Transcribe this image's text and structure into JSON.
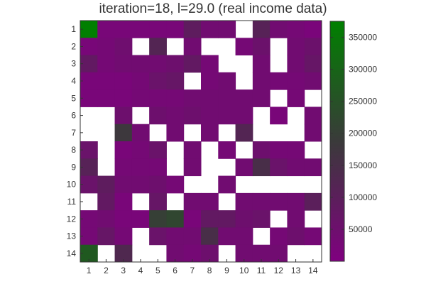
{
  "chart_data": {
    "type": "heatmap",
    "title": "iteration=18, l=29.0 (real income data)",
    "x": [
      1,
      2,
      3,
      4,
      5,
      6,
      7,
      8,
      9,
      10,
      11,
      12,
      13,
      14
    ],
    "y": [
      1,
      2,
      3,
      4,
      5,
      6,
      7,
      8,
      9,
      10,
      11,
      12,
      13,
      14
    ],
    "x_tick_labels": [
      "1",
      "2",
      "3",
      "4",
      "5",
      "6",
      "7",
      "8",
      "9",
      "10",
      "11",
      "12",
      "13",
      "14"
    ],
    "y_tick_labels": [
      "1",
      "2",
      "3",
      "4",
      "5",
      "6",
      "7",
      "8",
      "9",
      "10",
      "11",
      "12",
      "13",
      "14"
    ],
    "colorbar": {
      "range": [
        0,
        375000
      ],
      "ticks": [
        50000,
        100000,
        150000,
        200000,
        250000,
        300000,
        350000
      ],
      "tick_labels": [
        "50000",
        "100000",
        "150000",
        "200000",
        "250000",
        "300000",
        "350000"
      ]
    },
    "colormap": {
      "low": "#800080",
      "mid": "#3a3a3a",
      "high": "#008000"
    },
    "values": [
      [
        372000,
        22000,
        22000,
        22000,
        22000,
        22000,
        90000,
        40000,
        40000,
        null,
        110000,
        40000,
        30000,
        15000
      ],
      [
        22000,
        30000,
        45000,
        null,
        120000,
        null,
        40000,
        null,
        null,
        30000,
        55000,
        null,
        40000,
        55000
      ],
      [
        80000,
        30000,
        40000,
        40000,
        40000,
        50000,
        80000,
        30000,
        null,
        null,
        40000,
        null,
        40000,
        70000
      ],
      [
        20000,
        20000,
        20000,
        30000,
        60000,
        70000,
        null,
        30000,
        40000,
        null,
        40000,
        30000,
        30000,
        40000
      ],
      [
        20000,
        20000,
        20000,
        30000,
        30000,
        30000,
        40000,
        40000,
        40000,
        40000,
        40000,
        null,
        30000,
        null
      ],
      [
        null,
        null,
        50000,
        null,
        50000,
        40000,
        50000,
        40000,
        40000,
        40000,
        null,
        20000,
        null,
        40000
      ],
      [
        null,
        null,
        180000,
        40000,
        null,
        40000,
        null,
        40000,
        null,
        120000,
        null,
        null,
        null,
        40000
      ],
      [
        60000,
        null,
        20000,
        30000,
        60000,
        null,
        40000,
        null,
        30000,
        null,
        50000,
        30000,
        30000,
        null
      ],
      [
        110000,
        null,
        30000,
        30000,
        30000,
        null,
        40000,
        null,
        null,
        40000,
        150000,
        60000,
        40000,
        40000
      ],
      [
        60000,
        90000,
        40000,
        40000,
        50000,
        30000,
        null,
        null,
        40000,
        null,
        null,
        null,
        null,
        null
      ],
      [
        null,
        80000,
        20000,
        null,
        70000,
        null,
        40000,
        40000,
        null,
        40000,
        40000,
        40000,
        40000,
        100000
      ],
      [
        30000,
        40000,
        20000,
        20000,
        200000,
        220000,
        20000,
        80000,
        80000,
        50000,
        60000,
        null,
        40000,
        null
      ],
      [
        30000,
        70000,
        30000,
        null,
        60000,
        40000,
        40000,
        150000,
        40000,
        40000,
        null,
        30000,
        50000,
        30000
      ],
      [
        270000,
        null,
        130000,
        null,
        null,
        40000,
        30000,
        50000,
        null,
        40000,
        40000,
        40000,
        null,
        null
      ]
    ]
  }
}
